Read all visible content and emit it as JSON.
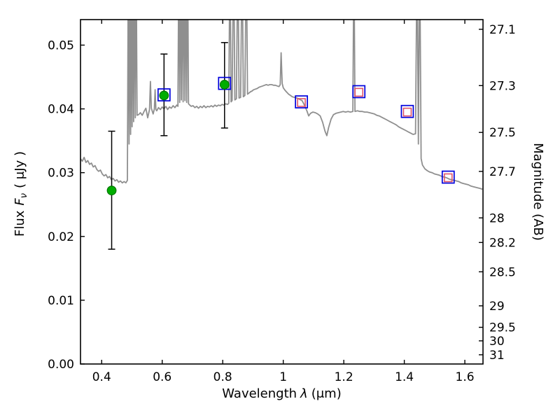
{
  "figure": {
    "background": "#ffffff"
  },
  "chart_data": {
    "type": "line+scatter",
    "title": "",
    "xlabel": "Wavelength λ (μm)",
    "xlabel_parts": {
      "prefix": "Wavelength",
      "symbol": "λ",
      "suffix": "(μm)"
    },
    "ylabel_left": "Flux Fν ( μJy )",
    "ylabel_left_parts": {
      "prefix": "Flux",
      "symbol": "F",
      "subscript": "ν",
      "suffix": "( μJy )"
    },
    "ylabel_right": "Magnitude (AB)",
    "xlim": [
      0.33,
      1.66
    ],
    "ylim_flux": [
      0.0,
      0.054
    ],
    "flux_mag_zeropoint": 23.9,
    "grid": false,
    "legend": null,
    "x_ticks": {
      "values": [
        0.4,
        0.6,
        0.8,
        1.0,
        1.2,
        1.4,
        1.6
      ],
      "labels": [
        "0.4",
        "0.6",
        "0.8",
        "1",
        "1.2",
        "1.4",
        "1.6"
      ]
    },
    "y_ticks_left": {
      "values": [
        0.0,
        0.01,
        0.02,
        0.03,
        0.04,
        0.05
      ],
      "labels": [
        "0.00",
        "0.01",
        "0.02",
        "0.03",
        "0.04",
        "0.05"
      ]
    },
    "y_ticks_right": {
      "values": [
        27.1,
        27.3,
        27.5,
        27.7,
        28,
        28.2,
        28.5,
        29,
        29.5,
        30,
        31
      ],
      "labels": [
        "27.1",
        "27.3",
        "27.5",
        "27.7",
        "28",
        "28.2",
        "28.5",
        "29",
        "29.5",
        "30",
        "31"
      ]
    },
    "spectrum": {
      "name": "model-spectrum",
      "color": "#8f8f8f",
      "points": [
        [
          0.33,
          0.0322
        ],
        [
          0.336,
          0.0318
        ],
        [
          0.342,
          0.0324
        ],
        [
          0.348,
          0.0316
        ],
        [
          0.354,
          0.0319
        ],
        [
          0.36,
          0.0313
        ],
        [
          0.366,
          0.0315
        ],
        [
          0.372,
          0.0309
        ],
        [
          0.378,
          0.0311
        ],
        [
          0.384,
          0.0305
        ],
        [
          0.39,
          0.0302
        ],
        [
          0.396,
          0.0304
        ],
        [
          0.402,
          0.0298
        ],
        [
          0.408,
          0.0295
        ],
        [
          0.414,
          0.0297
        ],
        [
          0.42,
          0.0292
        ],
        [
          0.426,
          0.0294
        ],
        [
          0.432,
          0.0289
        ],
        [
          0.438,
          0.0291
        ],
        [
          0.444,
          0.0287
        ],
        [
          0.45,
          0.0289
        ],
        [
          0.456,
          0.0285
        ],
        [
          0.462,
          0.0287
        ],
        [
          0.468,
          0.0284
        ],
        [
          0.474,
          0.0286
        ],
        [
          0.48,
          0.0284
        ],
        [
          0.485,
          0.0288
        ],
        [
          0.488,
          0.065
        ],
        [
          0.4905,
          0.0345
        ],
        [
          0.493,
          0.065
        ],
        [
          0.4955,
          0.036
        ],
        [
          0.498,
          0.065
        ],
        [
          0.5005,
          0.0372
        ],
        [
          0.503,
          0.065
        ],
        [
          0.5055,
          0.038
        ],
        [
          0.508,
          0.065
        ],
        [
          0.511,
          0.0386
        ],
        [
          0.514,
          0.065
        ],
        [
          0.517,
          0.039
        ],
        [
          0.522,
          0.0391
        ],
        [
          0.528,
          0.0394
        ],
        [
          0.534,
          0.039
        ],
        [
          0.54,
          0.0396
        ],
        [
          0.546,
          0.0401
        ],
        [
          0.552,
          0.0386
        ],
        [
          0.558,
          0.0399
        ],
        [
          0.561,
          0.0443
        ],
        [
          0.564,
          0.0401
        ],
        [
          0.57,
          0.0392
        ],
        [
          0.574,
          0.04
        ],
        [
          0.5765,
          0.043
        ],
        [
          0.579,
          0.0399
        ],
        [
          0.582,
          0.0397
        ],
        [
          0.588,
          0.0402
        ],
        [
          0.594,
          0.0399
        ],
        [
          0.6,
          0.0403
        ],
        [
          0.606,
          0.04
        ],
        [
          0.612,
          0.0404
        ],
        [
          0.618,
          0.0399
        ],
        [
          0.624,
          0.0403
        ],
        [
          0.63,
          0.0401
        ],
        [
          0.636,
          0.0405
        ],
        [
          0.642,
          0.0402
        ],
        [
          0.648,
          0.0406
        ],
        [
          0.652,
          0.0404
        ],
        [
          0.655,
          0.065
        ],
        [
          0.6578,
          0.041
        ],
        [
          0.6606,
          0.065
        ],
        [
          0.6634,
          0.0414
        ],
        [
          0.6662,
          0.065
        ],
        [
          0.669,
          0.0411
        ],
        [
          0.672,
          0.065
        ],
        [
          0.675,
          0.0413
        ],
        [
          0.678,
          0.065
        ],
        [
          0.681,
          0.041
        ],
        [
          0.684,
          0.065
        ],
        [
          0.687,
          0.0408
        ],
        [
          0.691,
          0.0406
        ],
        [
          0.696,
          0.0404
        ],
        [
          0.702,
          0.0405
        ],
        [
          0.708,
          0.0402
        ],
        [
          0.714,
          0.0404
        ],
        [
          0.72,
          0.0401
        ],
        [
          0.726,
          0.0404
        ],
        [
          0.732,
          0.0402
        ],
        [
          0.738,
          0.0405
        ],
        [
          0.744,
          0.0402
        ],
        [
          0.75,
          0.0404
        ],
        [
          0.756,
          0.0403
        ],
        [
          0.762,
          0.0405
        ],
        [
          0.768,
          0.0403
        ],
        [
          0.774,
          0.0406
        ],
        [
          0.78,
          0.0404
        ],
        [
          0.786,
          0.0406
        ],
        [
          0.792,
          0.0405
        ],
        [
          0.798,
          0.0407
        ],
        [
          0.804,
          0.0406
        ],
        [
          0.81,
          0.0408
        ],
        [
          0.816,
          0.0407
        ],
        [
          0.82,
          0.0409
        ],
        [
          0.824,
          0.065
        ],
        [
          0.8275,
          0.0411
        ],
        [
          0.831,
          0.0413
        ],
        [
          0.836,
          0.065
        ],
        [
          0.84,
          0.0414
        ],
        [
          0.845,
          0.0416
        ],
        [
          0.85,
          0.065
        ],
        [
          0.854,
          0.0417
        ],
        [
          0.859,
          0.0418
        ],
        [
          0.864,
          0.065
        ],
        [
          0.868,
          0.0419
        ],
        [
          0.873,
          0.0421
        ],
        [
          0.878,
          0.065
        ],
        [
          0.882,
          0.0423
        ],
        [
          0.887,
          0.0425
        ],
        [
          0.892,
          0.0427
        ],
        [
          0.897,
          0.0428
        ],
        [
          0.902,
          0.043
        ],
        [
          0.908,
          0.0431
        ],
        [
          0.914,
          0.0432
        ],
        [
          0.92,
          0.0434
        ],
        [
          0.926,
          0.0435
        ],
        [
          0.932,
          0.0436
        ],
        [
          0.938,
          0.0437
        ],
        [
          0.944,
          0.0438
        ],
        [
          0.95,
          0.0437
        ],
        [
          0.956,
          0.0438
        ],
        [
          0.962,
          0.0438
        ],
        [
          0.968,
          0.0437
        ],
        [
          0.974,
          0.0437
        ],
        [
          0.98,
          0.0436
        ],
        [
          0.986,
          0.0435
        ],
        [
          0.99,
          0.0438
        ],
        [
          0.993,
          0.0488
        ],
        [
          0.9965,
          0.044
        ],
        [
          1.0,
          0.0433
        ],
        [
          1.006,
          0.0429
        ],
        [
          1.012,
          0.0426
        ],
        [
          1.018,
          0.0423
        ],
        [
          1.024,
          0.0421
        ],
        [
          1.03,
          0.0419
        ],
        [
          1.038,
          0.0418
        ],
        [
          1.046,
          0.0417
        ],
        [
          1.054,
          0.0415
        ],
        [
          1.062,
          0.0413
        ],
        [
          1.07,
          0.0406
        ],
        [
          1.078,
          0.0397
        ],
        [
          1.084,
          0.0389
        ],
        [
          1.09,
          0.0393
        ],
        [
          1.098,
          0.0395
        ],
        [
          1.106,
          0.0394
        ],
        [
          1.114,
          0.0392
        ],
        [
          1.122,
          0.0389
        ],
        [
          1.13,
          0.0379
        ],
        [
          1.138,
          0.0365
        ],
        [
          1.144,
          0.0358
        ],
        [
          1.15,
          0.0371
        ],
        [
          1.158,
          0.0384
        ],
        [
          1.166,
          0.0391
        ],
        [
          1.174,
          0.0393
        ],
        [
          1.182,
          0.0394
        ],
        [
          1.19,
          0.0395
        ],
        [
          1.198,
          0.0396
        ],
        [
          1.206,
          0.0395
        ],
        [
          1.214,
          0.0396
        ],
        [
          1.222,
          0.0395
        ],
        [
          1.23,
          0.0396
        ],
        [
          1.2335,
          0.065
        ],
        [
          1.237,
          0.0396
        ],
        [
          1.245,
          0.0397
        ],
        [
          1.253,
          0.0396
        ],
        [
          1.261,
          0.0396
        ],
        [
          1.269,
          0.0395
        ],
        [
          1.277,
          0.0395
        ],
        [
          1.285,
          0.0394
        ],
        [
          1.293,
          0.0393
        ],
        [
          1.301,
          0.0392
        ],
        [
          1.309,
          0.039
        ],
        [
          1.317,
          0.0389
        ],
        [
          1.325,
          0.0387
        ],
        [
          1.333,
          0.0385
        ],
        [
          1.341,
          0.0383
        ],
        [
          1.349,
          0.0381
        ],
        [
          1.357,
          0.0379
        ],
        [
          1.365,
          0.0377
        ],
        [
          1.373,
          0.0375
        ],
        [
          1.381,
          0.0372
        ],
        [
          1.389,
          0.037
        ],
        [
          1.397,
          0.0368
        ],
        [
          1.405,
          0.0366
        ],
        [
          1.413,
          0.0364
        ],
        [
          1.421,
          0.0362
        ],
        [
          1.429,
          0.036
        ],
        [
          1.437,
          0.0361
        ],
        [
          1.442,
          0.065
        ],
        [
          1.4465,
          0.0345
        ],
        [
          1.451,
          0.065
        ],
        [
          1.4555,
          0.0322
        ],
        [
          1.46,
          0.0312
        ],
        [
          1.468,
          0.0306
        ],
        [
          1.476,
          0.0303
        ],
        [
          1.484,
          0.0301
        ],
        [
          1.492,
          0.03
        ],
        [
          1.5,
          0.0298
        ],
        [
          1.508,
          0.0297
        ],
        [
          1.516,
          0.0296
        ],
        [
          1.524,
          0.0294
        ],
        [
          1.532,
          0.0293
        ],
        [
          1.54,
          0.0292
        ],
        [
          1.548,
          0.029
        ],
        [
          1.556,
          0.0289
        ],
        [
          1.564,
          0.0288
        ],
        [
          1.572,
          0.0287
        ],
        [
          1.58,
          0.0286
        ],
        [
          1.588,
          0.0284
        ],
        [
          1.596,
          0.0283
        ],
        [
          1.604,
          0.0282
        ],
        [
          1.612,
          0.0281
        ],
        [
          1.62,
          0.0279
        ],
        [
          1.628,
          0.0278
        ],
        [
          1.636,
          0.0277
        ],
        [
          1.644,
          0.0276
        ],
        [
          1.652,
          0.0275
        ],
        [
          1.658,
          0.0274
        ]
      ]
    },
    "observed": {
      "name": "observed-photometry",
      "marker": "circle",
      "fill_color": "#00ad00",
      "edge_color": "#007500",
      "errorbar_color": "#000000",
      "points": [
        {
          "x": 0.433,
          "flux": 0.0272,
          "err_lo": 0.0092,
          "err_hi": 0.0093
        },
        {
          "x": 0.606,
          "flux": 0.0421,
          "err_lo": 0.0063,
          "err_hi": 0.0065
        },
        {
          "x": 0.806,
          "flux": 0.0438,
          "err_lo": 0.0068,
          "err_hi": 0.0066
        }
      ]
    },
    "model_squares_outer": {
      "name": "model-photometry-blue-squares",
      "marker": "open-square",
      "color": "#0000dc",
      "points": [
        {
          "x": 0.606,
          "flux": 0.0422
        },
        {
          "x": 0.806,
          "flux": 0.044
        },
        {
          "x": 1.06,
          "flux": 0.0411
        },
        {
          "x": 1.25,
          "flux": 0.0427
        },
        {
          "x": 1.41,
          "flux": 0.0396
        },
        {
          "x": 1.545,
          "flux": 0.0293
        }
      ]
    },
    "model_squares_inner": {
      "name": "model-photometry-red-squares",
      "marker": "open-square",
      "color": "#e0556a",
      "points": [
        {
          "x": 1.06,
          "flux": 0.041
        },
        {
          "x": 1.25,
          "flux": 0.0426
        },
        {
          "x": 1.41,
          "flux": 0.0395
        },
        {
          "x": 1.545,
          "flux": 0.0292
        }
      ]
    }
  }
}
